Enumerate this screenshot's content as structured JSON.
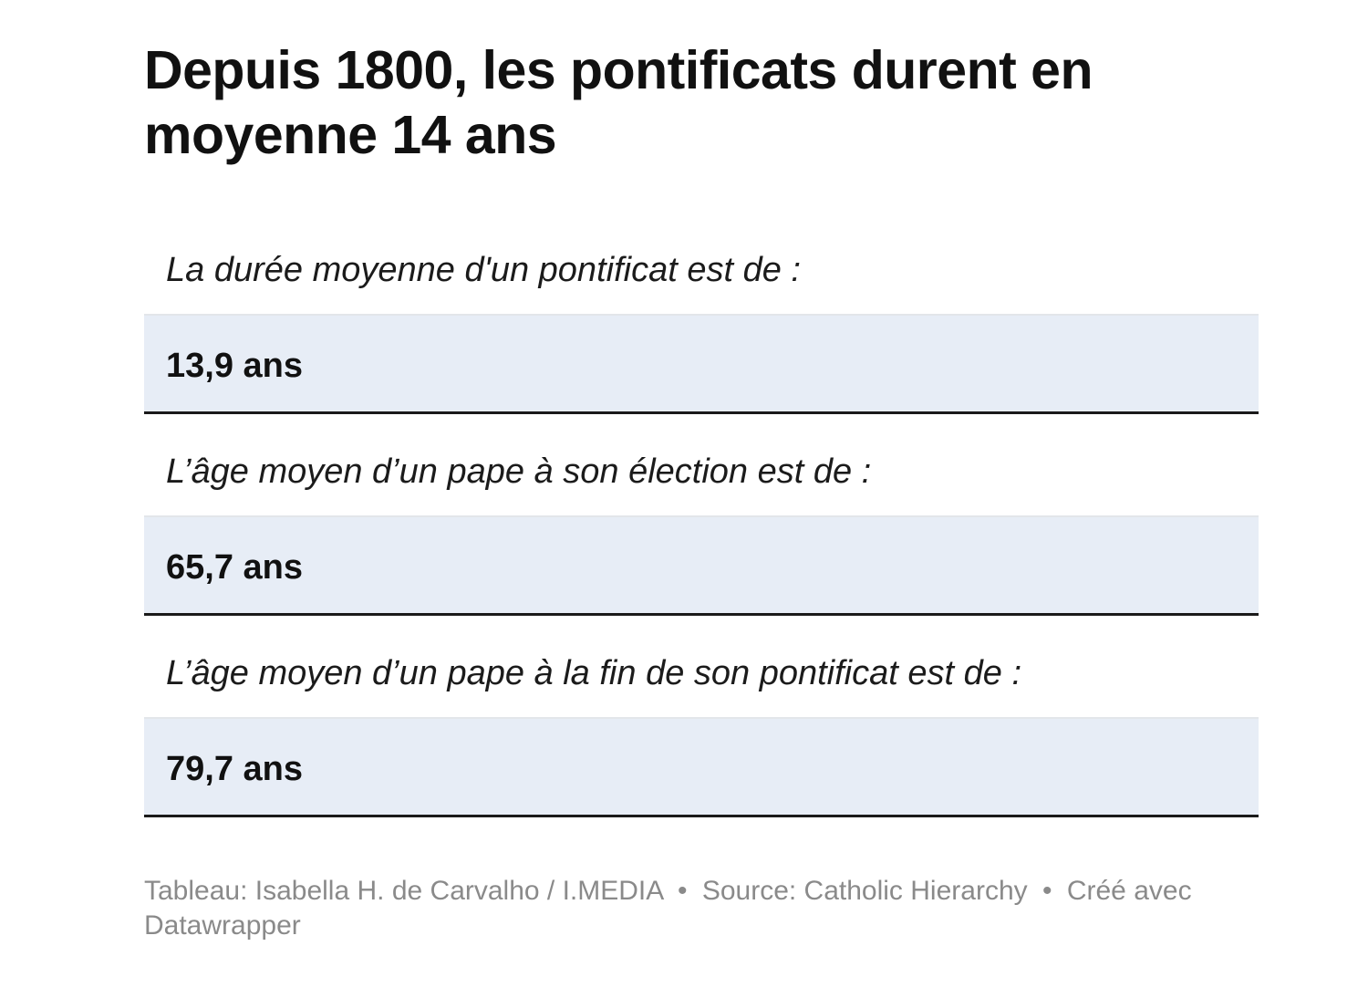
{
  "title": "Depuis 1800, les pontificats durent en moyenne 14 ans",
  "chart_data": {
    "type": "table",
    "title": "Depuis 1800, les pontificats durent en moyenne 14 ans",
    "rows": [
      {
        "label": "La durée moyenne d'un pontificat est de :",
        "value": "13,9 ans",
        "number": 13.9,
        "unit": "ans"
      },
      {
        "label": "L’âge moyen d’un pape à son élection est de :",
        "value": "65,7 ans",
        "number": 65.7,
        "unit": "ans"
      },
      {
        "label": "L’âge moyen d’un pape à la fin de son pontificat est de :",
        "value": "79,7 ans",
        "number": 79.7,
        "unit": "ans"
      }
    ]
  },
  "footer": {
    "credit": "Tableau: Isabella H. de Carvalho / I.MEDIA",
    "source": "Source: Catholic Hierarchy",
    "tool": "Créé avec Datawrapper",
    "separator": "•"
  },
  "colors": {
    "value_row_background": "#e7edf6",
    "row_rule": "#1a1a1a",
    "footer_text": "#8a8a8a"
  }
}
